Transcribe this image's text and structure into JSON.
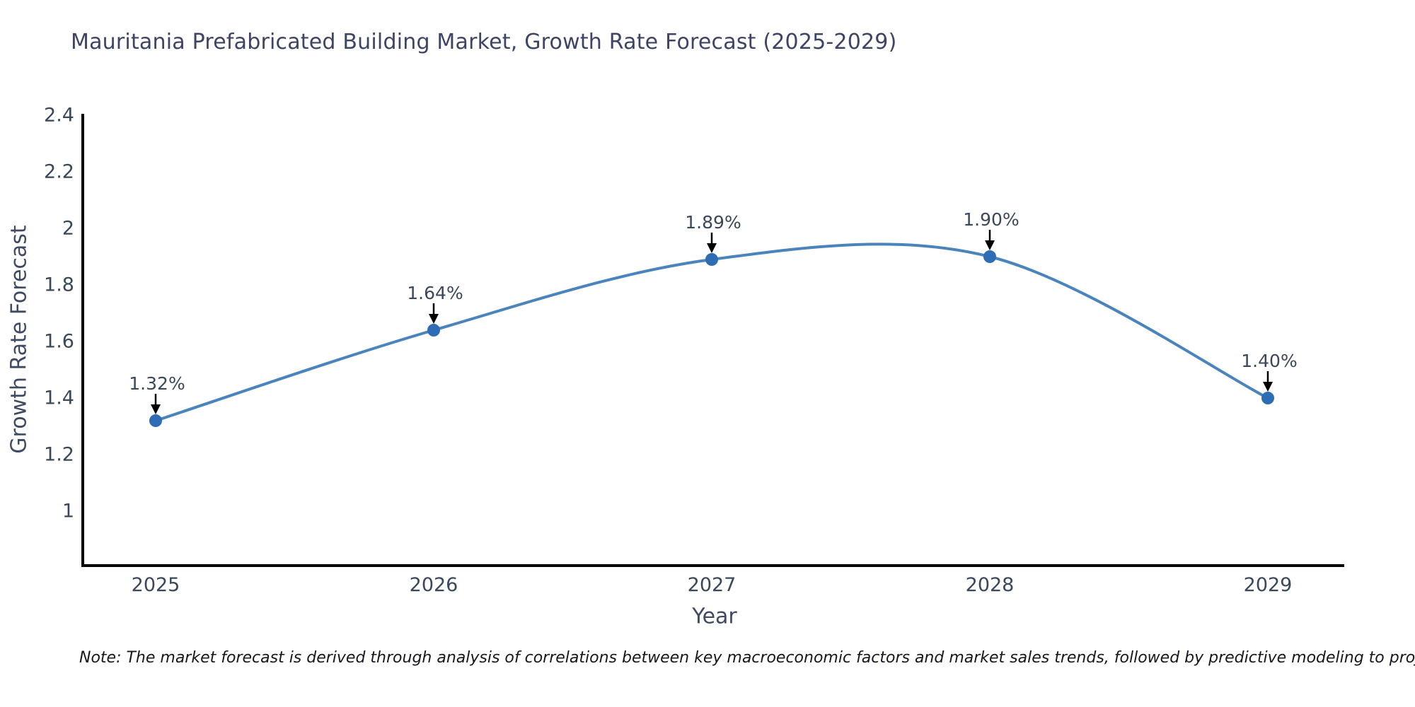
{
  "page": {
    "background": "#ffffff"
  },
  "note": {
    "text": "Note: The market forecast is derived through analysis of correlations between key macroeconomic factors and market sales trends, followed by predictive modeling to project future sales"
  },
  "chart_data": {
    "type": "line",
    "title": "Mauritania Prefabricated Building Market, Growth Rate Forecast (2025-2029)",
    "xlabel": "Year",
    "ylabel": "Growth Rate Forecast",
    "categories": [
      "2025",
      "2026",
      "2027",
      "2028",
      "2029"
    ],
    "series": [
      {
        "name": "Growth Rate Forecast",
        "values": [
          1.32,
          1.64,
          1.89,
          1.9,
          1.4
        ],
        "point_labels": [
          "1.32%",
          "1.64%",
          "1.89%",
          "1.90%",
          "1.40%"
        ]
      }
    ],
    "y_tick_values": [
      1,
      1.2,
      1.4,
      1.6,
      1.8,
      2,
      2.2,
      2.4
    ],
    "y_tick_labels": [
      "1",
      "1.2",
      "1.4",
      "1.6",
      "1.8",
      "2",
      "2.2",
      "2.4"
    ],
    "ylim": [
      0.81,
      2.4
    ],
    "curve": "spline",
    "grid": false,
    "legend_position": "none",
    "colors": {
      "line": "#4a84bd",
      "marker": "#2e6db3",
      "axis_line": "#000000",
      "tick_text": "#3b4859",
      "annotation_text": "#3b4859",
      "annotation_arrow": "#000000",
      "title_text": "#3e4466",
      "axis_label_text": "#3f4a63"
    }
  }
}
